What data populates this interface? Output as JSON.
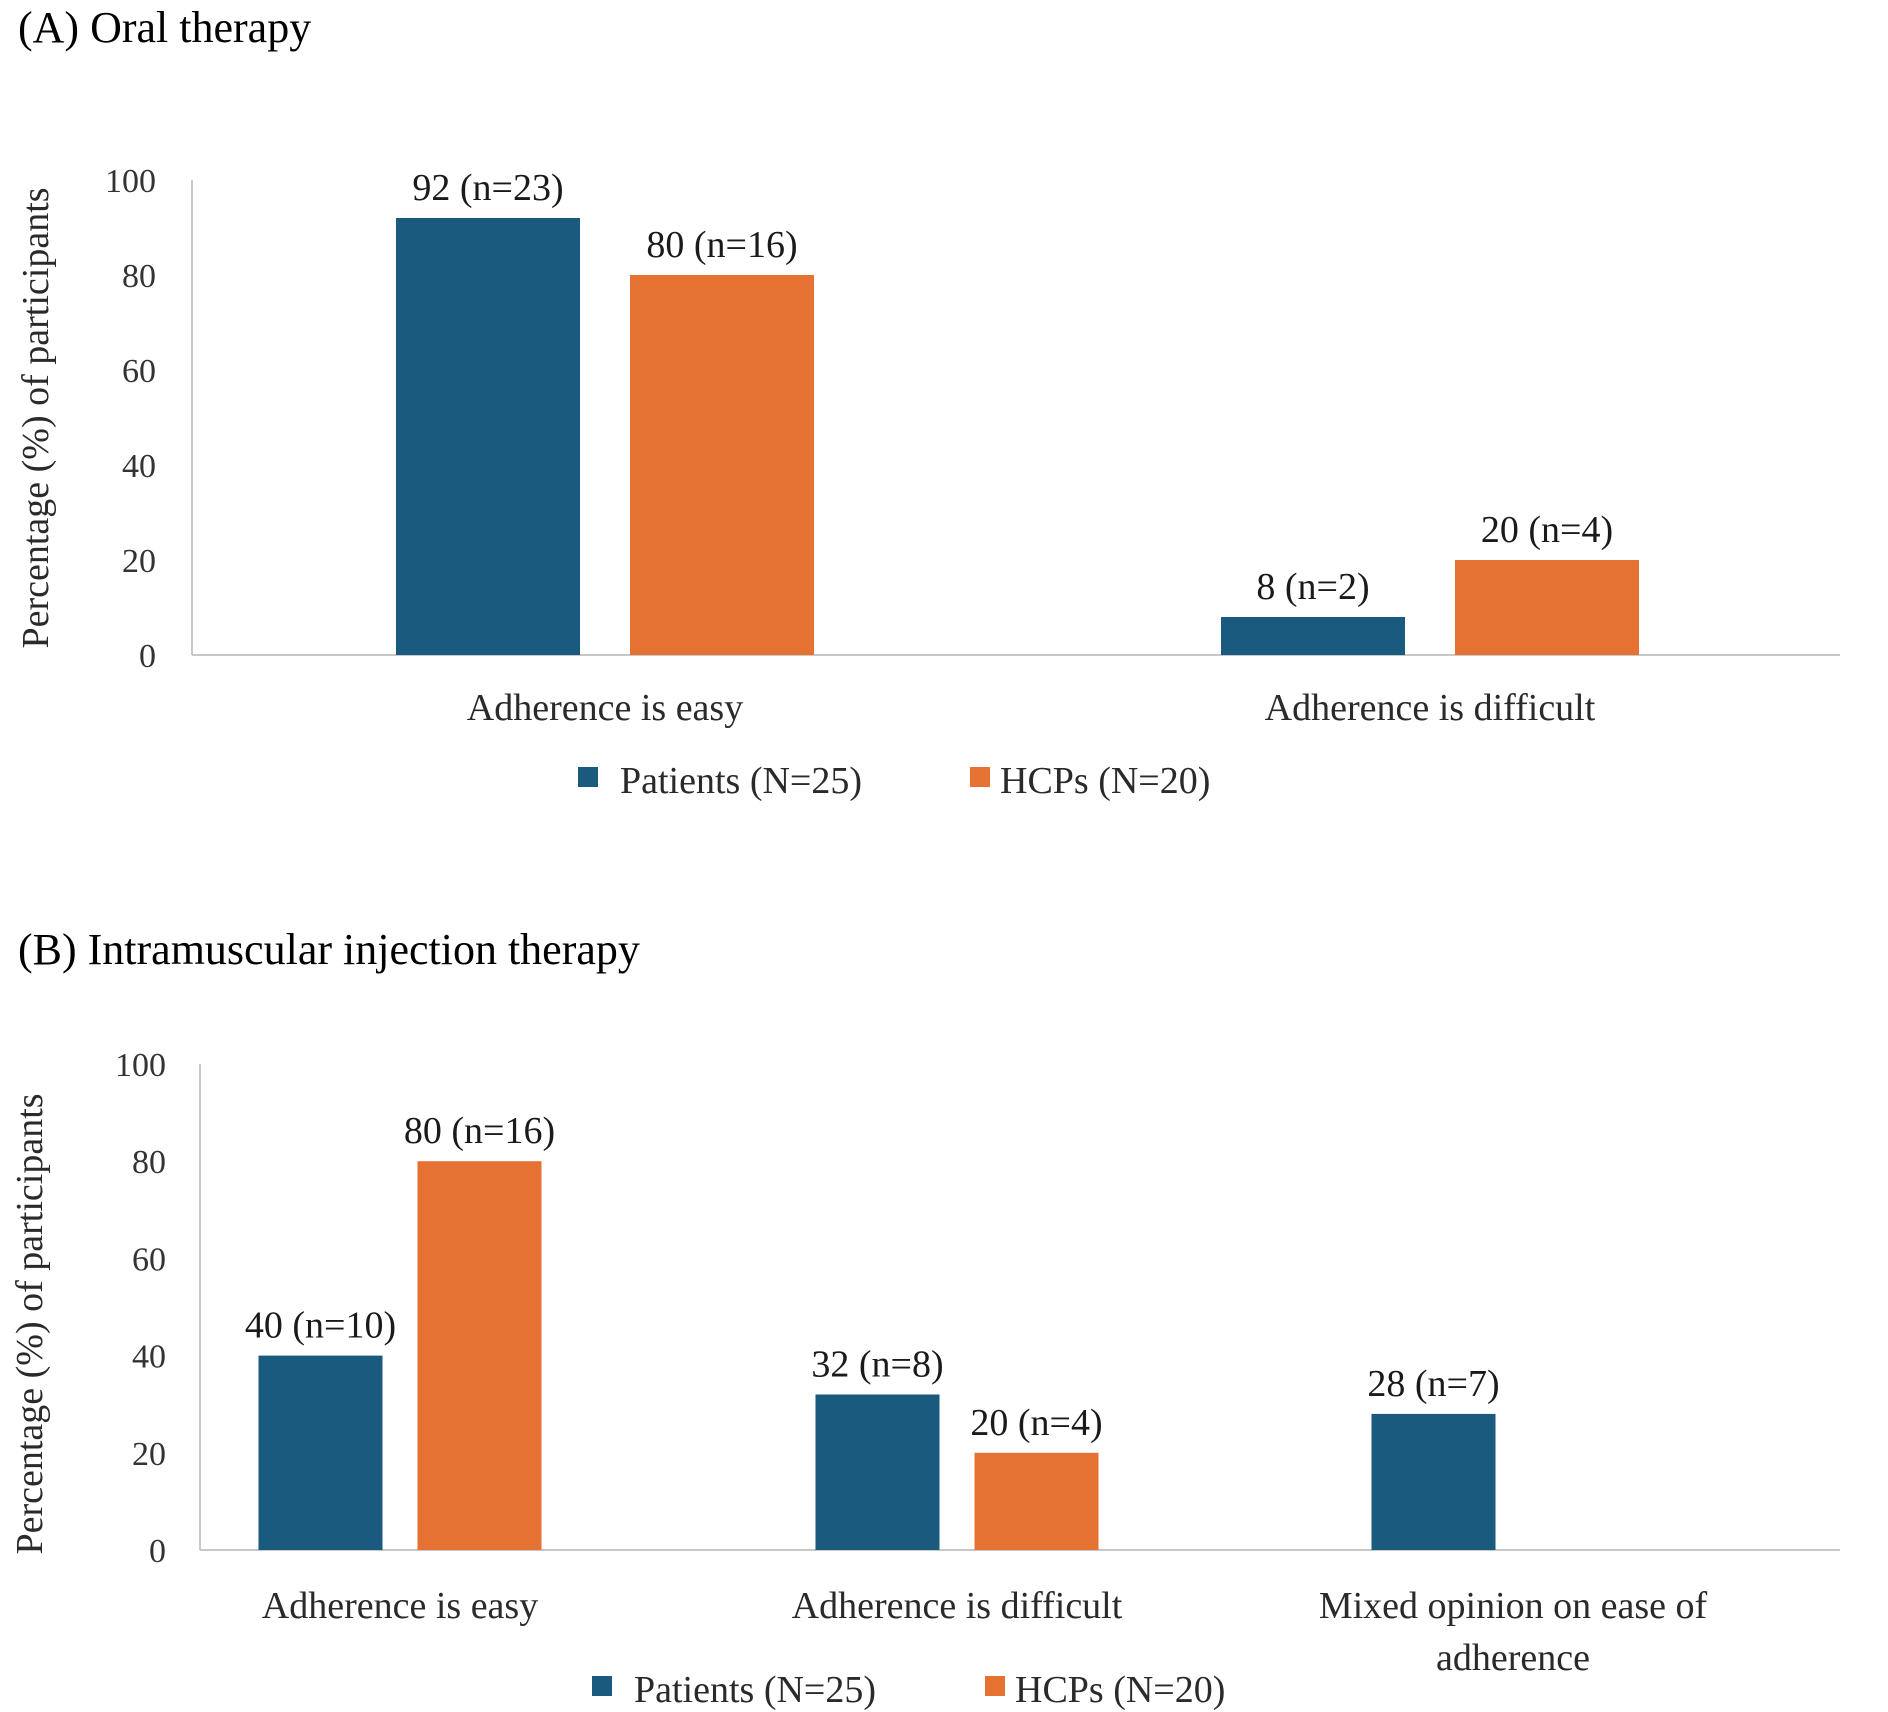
{
  "chart_data": [
    {
      "type": "bar",
      "title": "(A) Oral therapy",
      "ylabel": "Percentage (%) of participants",
      "ylim": [
        0,
        100
      ],
      "yticks": [
        0,
        20,
        40,
        60,
        80,
        100
      ],
      "categories": [
        [
          "Adherence is easy"
        ],
        [
          "Adherence is difficult"
        ]
      ],
      "series": [
        {
          "name": "Patients (N=25)",
          "color": "#1a5a7e",
          "values": [
            92,
            8
          ],
          "labels": [
            "92 (n=23)",
            "8 (n=2)"
          ]
        },
        {
          "name": "HCPs (N=20)",
          "color": "#e57132",
          "values": [
            80,
            20
          ],
          "labels": [
            "80 (n=16)",
            "20 (n=4)"
          ]
        }
      ],
      "legend": "bottom"
    },
    {
      "type": "bar",
      "title": "(B) Intramuscular injection therapy",
      "ylabel": "Percentage (%) of participants",
      "ylim": [
        0,
        100
      ],
      "yticks": [
        0,
        20,
        40,
        60,
        80,
        100
      ],
      "categories": [
        [
          "Adherence is easy"
        ],
        [
          "Adherence is difficult"
        ],
        [
          "Mixed opinion on ease of",
          "adherence"
        ]
      ],
      "series": [
        {
          "name": "Patients (N=25)",
          "color": "#1a5a7e",
          "values": [
            40,
            32,
            28
          ],
          "labels": [
            "40 (n=10)",
            "32 (n=8)",
            "28 (n=7)"
          ]
        },
        {
          "name": "HCPs (N=20)",
          "color": "#e57132",
          "values": [
            80,
            20,
            null
          ],
          "labels": [
            "80 (n=16)",
            "20 (n=4)",
            null
          ]
        }
      ],
      "legend": "bottom"
    }
  ]
}
